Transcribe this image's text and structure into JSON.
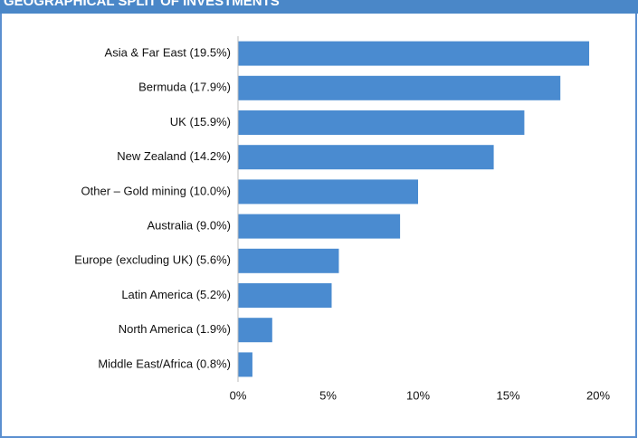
{
  "chart_data": {
    "type": "barh",
    "title": "GEOGRAPHICAL SPLIT OF INVESTMENTS",
    "categories": [
      "Asia & Far East (19.5%)",
      "Bermuda (17.9%)",
      "UK (15.9%)",
      "New Zealand (14.2%)",
      "Other – Gold mining (10.0%)",
      "Australia (9.0%)",
      "Europe (excluding UK) (5.6%)",
      "Latin America (5.2%)",
      "North America (1.9%)",
      "Middle East/Africa (0.8%)"
    ],
    "values": [
      19.5,
      17.9,
      15.9,
      14.2,
      10.0,
      9.0,
      5.6,
      5.2,
      1.9,
      0.8
    ],
    "color": "#4a8bd0",
    "xlim": [
      0,
      20
    ],
    "xticks": [
      {
        "value": 0,
        "label": "0%"
      },
      {
        "value": 5,
        "label": "5%"
      },
      {
        "value": 10,
        "label": "10%"
      },
      {
        "value": 15,
        "label": "15%"
      },
      {
        "value": 20,
        "label": "20%"
      }
    ],
    "grid": false
  }
}
